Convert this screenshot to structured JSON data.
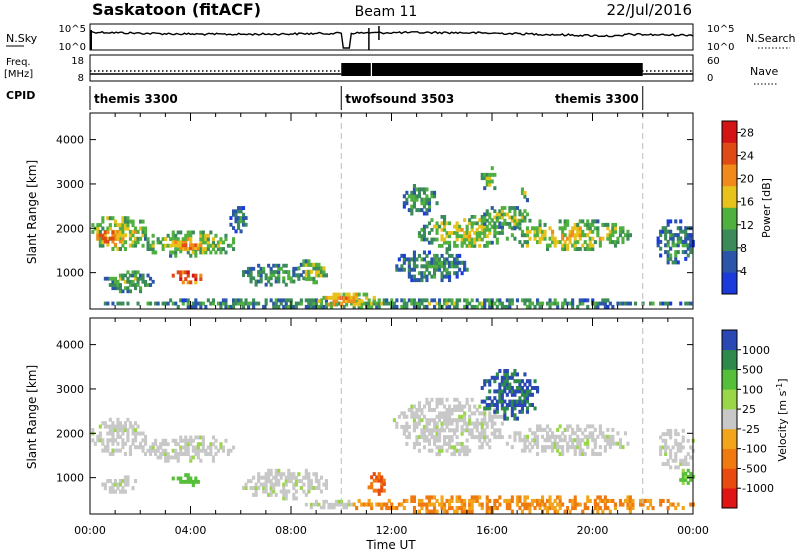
{
  "header": {
    "station": "Saskatoon (fitACF)",
    "beam": "Beam 11",
    "date": "22/Jul/2016"
  },
  "noise_panel": {
    "left_label": "N.Sky",
    "right_label": "N.Search",
    "left_ticks": [
      "10^5",
      "10^0"
    ],
    "right_ticks": [
      "10^5",
      "10^0"
    ]
  },
  "freq_panel": {
    "left_label_line1": "Freq.",
    "left_label_line2": "[MHz]",
    "right_label": "Nave",
    "left_ticks": [
      "18",
      "8"
    ],
    "right_ticks": [
      "60",
      "0"
    ]
  },
  "cpid_panel": {
    "label": "CPID",
    "segments": [
      {
        "name": "themis 3300",
        "start_hour": 0,
        "end_hour": 10
      },
      {
        "name": "twofsound 3503",
        "start_hour": 10,
        "end_hour": 22
      },
      {
        "name": "themis 3300",
        "start_hour": 22,
        "end_hour": 24
      }
    ]
  },
  "chart_data": [
    {
      "type": "heatmap",
      "title": "",
      "ylabel": "Slant Range [km]",
      "xlabel": "",
      "xlim_hours": [
        0,
        24
      ],
      "ylim": [
        180,
        4600
      ],
      "yticks": [
        1000,
        2000,
        3000,
        4000
      ],
      "colorbar": {
        "label": "Power [dB]",
        "ticks": [
          4,
          8,
          12,
          16,
          20,
          24,
          28
        ],
        "range": [
          0,
          30
        ],
        "colors": [
          "#1a3adc",
          "#2a55a8",
          "#3b8a5a",
          "#4fb040",
          "#e6c21a",
          "#f08a1a",
          "#e04a14",
          "#d41414"
        ]
      },
      "echo_regions": [
        {
          "x0": 0.0,
          "x1": 2.2,
          "y0": 1500,
          "y1": 2350,
          "mean": 14
        },
        {
          "x0": 0.2,
          "x1": 1.2,
          "y0": 1600,
          "y1": 1950,
          "mean": 21
        },
        {
          "x0": 2.0,
          "x1": 5.8,
          "y0": 1350,
          "y1": 1950,
          "mean": 13
        },
        {
          "x0": 3.2,
          "x1": 4.5,
          "y0": 1450,
          "y1": 1800,
          "mean": 19
        },
        {
          "x0": 3.2,
          "x1": 4.4,
          "y0": 750,
          "y1": 1050,
          "mean": 24
        },
        {
          "x0": 0.4,
          "x1": 2.5,
          "y0": 550,
          "y1": 1050,
          "mean": 10
        },
        {
          "x0": 5.5,
          "x1": 6.3,
          "y0": 1900,
          "y1": 2500,
          "mean": 7
        },
        {
          "x0": 6.0,
          "x1": 8.5,
          "y0": 700,
          "y1": 1200,
          "mean": 9
        },
        {
          "x0": 8.0,
          "x1": 9.6,
          "y0": 750,
          "y1": 1300,
          "mean": 12
        },
        {
          "x0": 0.0,
          "x1": 24.0,
          "y0": 200,
          "y1": 420,
          "mean": 9
        },
        {
          "x0": 9.0,
          "x1": 11.5,
          "y0": 250,
          "y1": 550,
          "mean": 18
        },
        {
          "x0": 12.3,
          "x1": 13.8,
          "y0": 2300,
          "y1": 3000,
          "mean": 9
        },
        {
          "x0": 13.0,
          "x1": 16.5,
          "y0": 1500,
          "y1": 2300,
          "mean": 13
        },
        {
          "x0": 15.5,
          "x1": 17.5,
          "y0": 2000,
          "y1": 2500,
          "mean": 12
        },
        {
          "x0": 16.5,
          "x1": 21.5,
          "y0": 1500,
          "y1": 2200,
          "mean": 14
        },
        {
          "x0": 15.5,
          "x1": 16.2,
          "y0": 2800,
          "y1": 3400,
          "mean": 11
        },
        {
          "x0": 17.0,
          "x1": 17.5,
          "y0": 2600,
          "y1": 3000,
          "mean": 10
        },
        {
          "x0": 12.0,
          "x1": 15.0,
          "y0": 800,
          "y1": 1500,
          "mean": 8
        },
        {
          "x0": 22.5,
          "x1": 24.0,
          "y0": 1200,
          "y1": 2200,
          "mean": 7
        }
      ]
    },
    {
      "type": "heatmap",
      "title": "",
      "ylabel": "Slant Range [km]",
      "xlabel": "Time UT",
      "xlim_hours": [
        0,
        24
      ],
      "xticks": [
        "00:00",
        "04:00",
        "08:00",
        "12:00",
        "16:00",
        "20:00",
        "00:00"
      ],
      "ylim": [
        180,
        4600
      ],
      "yticks": [
        1000,
        2000,
        3000,
        4000
      ],
      "colorbar": {
        "label": "Velocity [m s^-1]",
        "ticks": [
          1000,
          500,
          100,
          25,
          -25,
          -100,
          -500,
          -1000
        ],
        "colors": [
          "#2a48b4",
          "#2e8a4a",
          "#56bf3a",
          "#9ad64a",
          "#c8c8c8",
          "#f2a41a",
          "#f07a10",
          "#e84a10",
          "#e01414"
        ]
      },
      "echo_regions": [
        {
          "x0": 0.0,
          "x1": 2.2,
          "y0": 1500,
          "y1": 2350,
          "kind": "ground"
        },
        {
          "x0": 2.0,
          "x1": 5.8,
          "y0": 1350,
          "y1": 1950,
          "kind": "ground"
        },
        {
          "x0": 0.4,
          "x1": 1.8,
          "y0": 650,
          "y1": 1050,
          "kind": "ground"
        },
        {
          "x0": 3.2,
          "x1": 4.4,
          "y0": 800,
          "y1": 1100,
          "v": 100
        },
        {
          "x0": 6.0,
          "x1": 9.5,
          "y0": 500,
          "y1": 1200,
          "kind": "ground"
        },
        {
          "x0": 8.5,
          "x1": 10.5,
          "y0": 300,
          "y1": 500,
          "kind": "ground"
        },
        {
          "x0": 10.0,
          "x1": 24.0,
          "y0": 200,
          "y1": 600,
          "v": -100
        },
        {
          "x0": 11.0,
          "x1": 11.8,
          "y0": 600,
          "y1": 1200,
          "v": -500
        },
        {
          "x0": 12.0,
          "x1": 16.5,
          "y0": 1500,
          "y1": 2800,
          "kind": "ground"
        },
        {
          "x0": 16.5,
          "x1": 21.5,
          "y0": 1500,
          "y1": 2200,
          "kind": "ground"
        },
        {
          "x0": 15.5,
          "x1": 17.8,
          "y0": 2300,
          "y1": 3450,
          "v": 800
        },
        {
          "x0": 22.5,
          "x1": 24.0,
          "y0": 1200,
          "y1": 2100,
          "kind": "ground"
        },
        {
          "x0": 23.4,
          "x1": 24.0,
          "y0": 850,
          "y1": 1200,
          "v": 100
        }
      ]
    }
  ]
}
